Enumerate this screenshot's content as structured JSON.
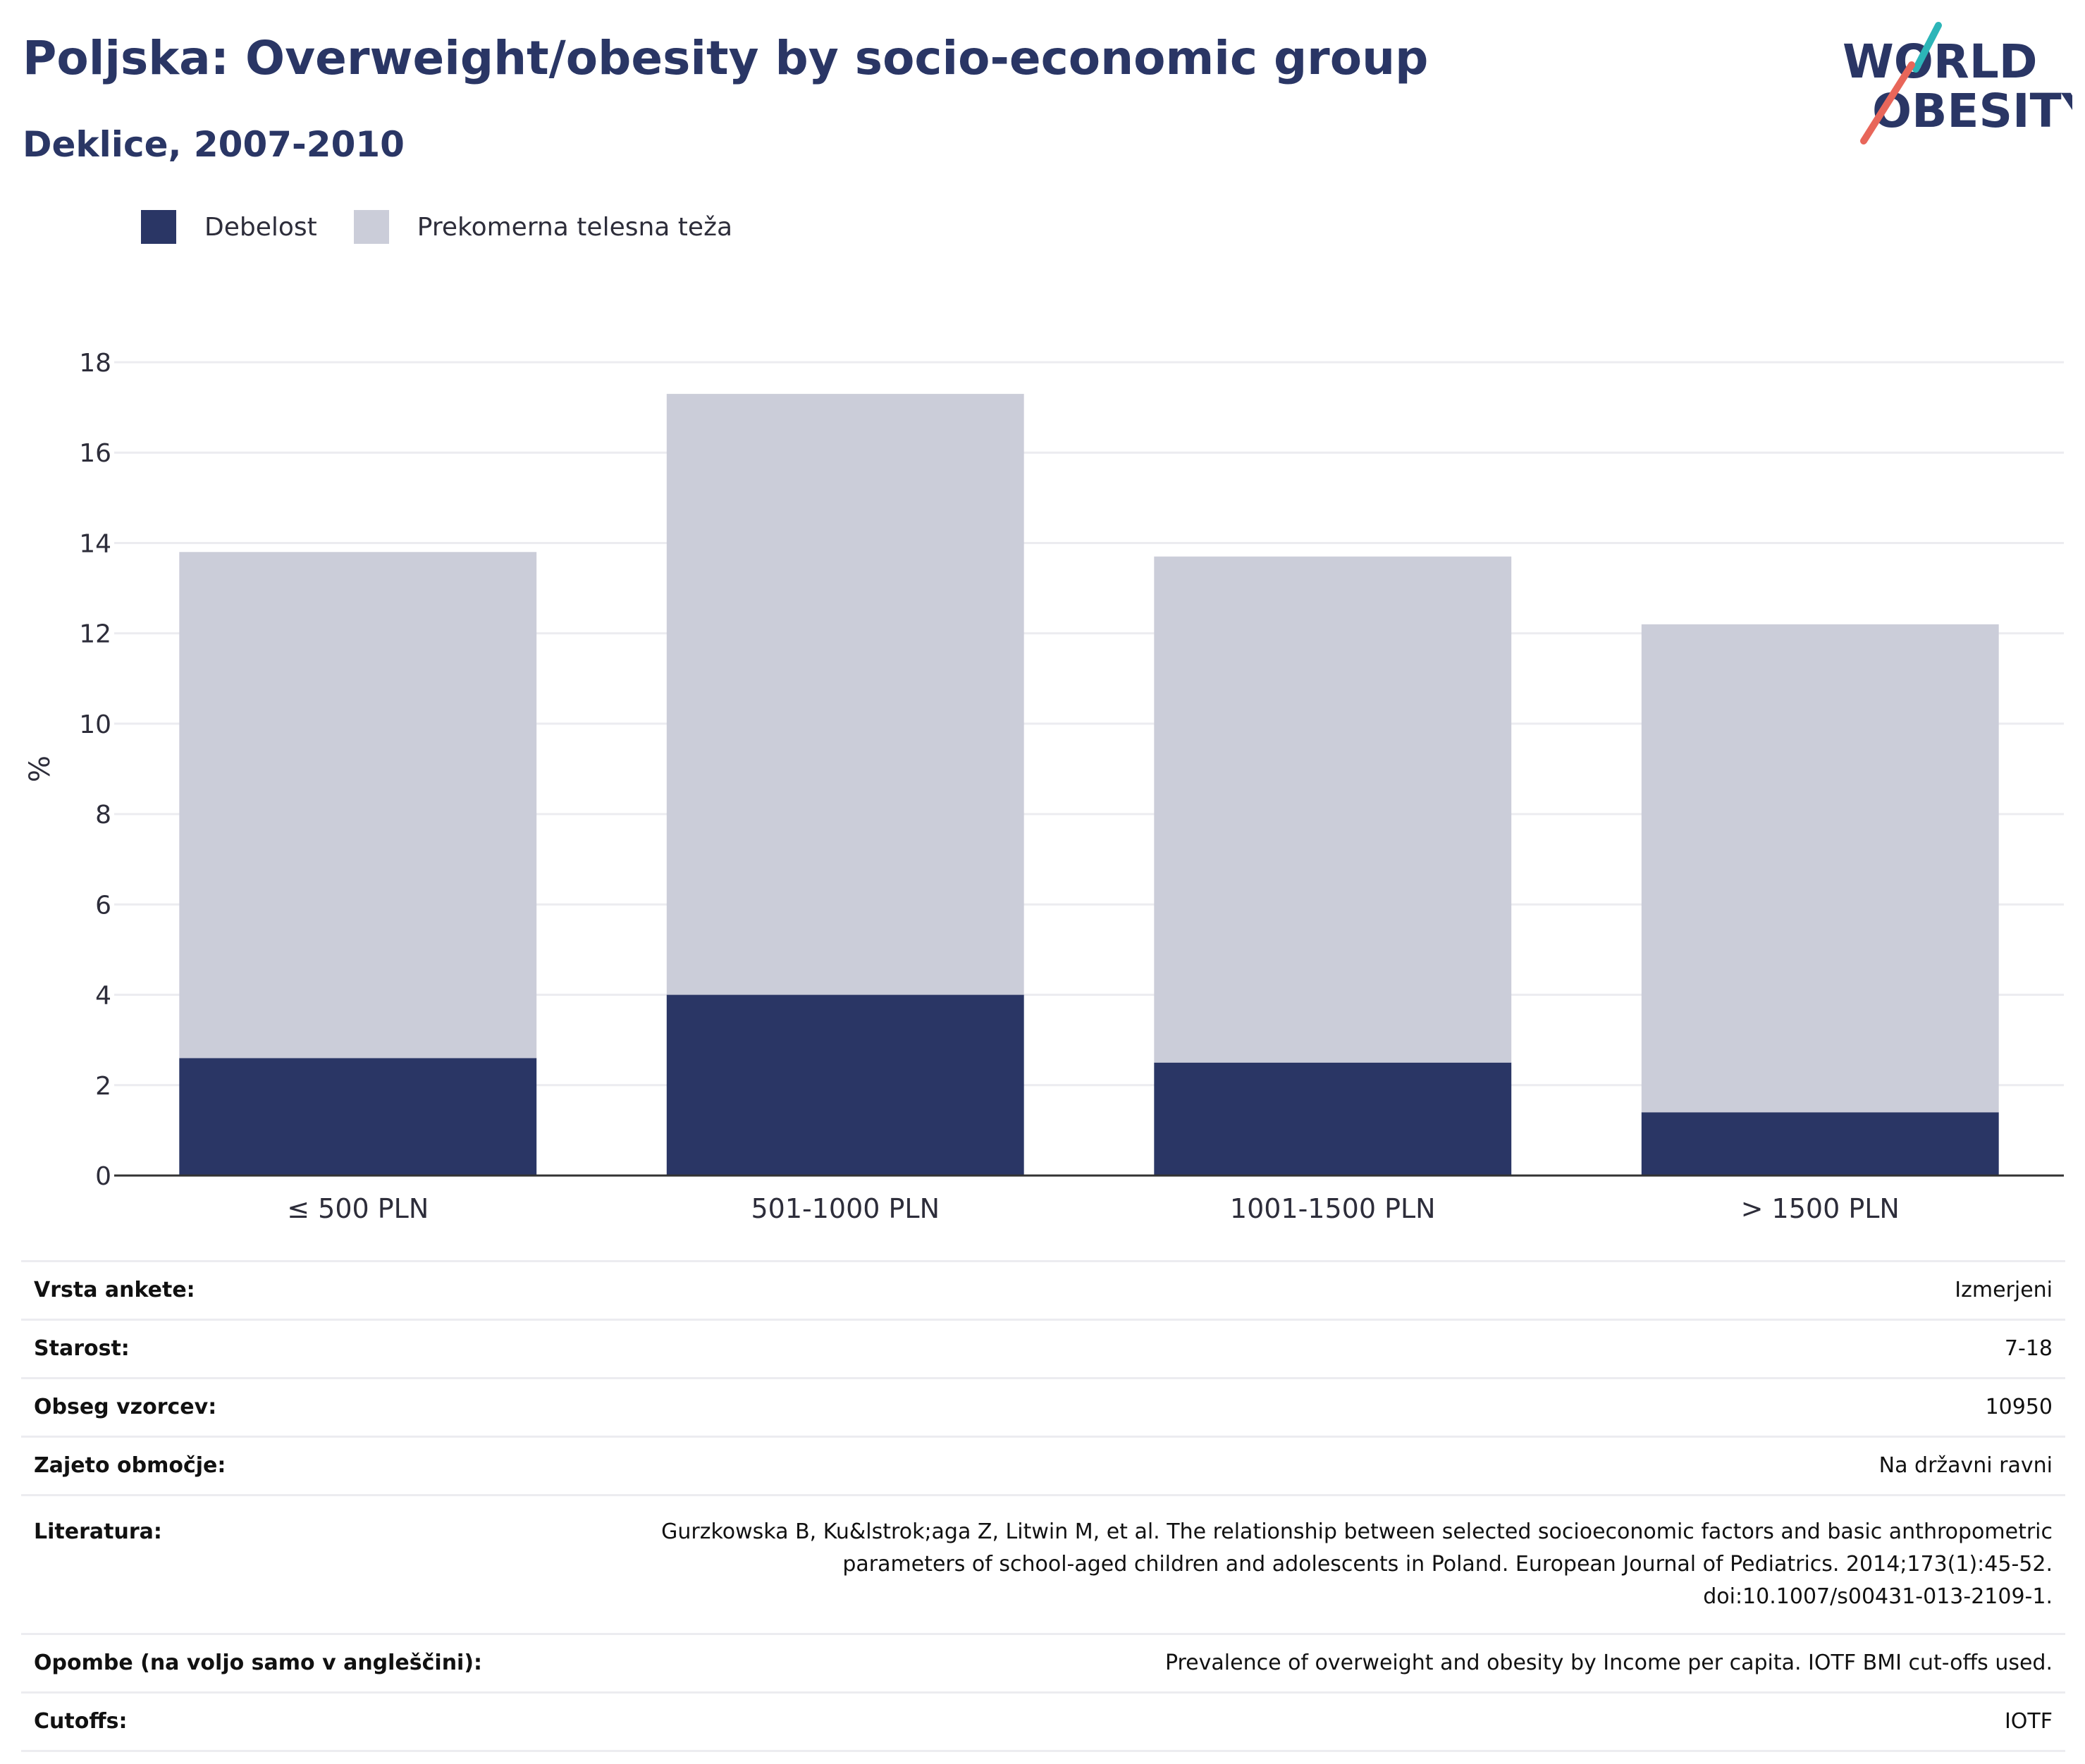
{
  "header": {
    "title": "Poljska: Overweight/obesity by socio-economic group",
    "subtitle": "Deklice, 2007-2010"
  },
  "logo": {
    "line1": "WORLD",
    "line2": "OBESITY",
    "colors": {
      "text": "#2a3665",
      "teal": "#2cb5b8",
      "coral": "#e8665a"
    }
  },
  "colors": {
    "obesity": "#2a3665",
    "overweight": "#cbcdd9",
    "grid": "#ececf0",
    "axis": "#333333"
  },
  "chart_data": {
    "type": "bar",
    "stacked": true,
    "categories": [
      "≤ 500 PLN",
      "501-1000 PLN",
      "1001-1500 PLN",
      "> 1500 PLN"
    ],
    "series": [
      {
        "name": "Debelost",
        "values": [
          2.6,
          4.0,
          2.5,
          1.4
        ]
      },
      {
        "name": "Prekomerna telesna teža",
        "values": [
          11.2,
          13.3,
          11.2,
          10.8
        ]
      }
    ],
    "totals": [
      13.8,
      17.3,
      13.7,
      12.2
    ],
    "ylabel": "%",
    "ylim": [
      0,
      18
    ],
    "yticks": [
      "0",
      "2",
      "4",
      "6",
      "8",
      "10",
      "12",
      "14",
      "16",
      "18"
    ],
    "grid": true,
    "legend_position": "top-left"
  },
  "info": [
    {
      "key": "Vrsta ankete:",
      "value": "Izmerjeni"
    },
    {
      "key": "Starost:",
      "value": "7-18"
    },
    {
      "key": "Obseg vzorcev:",
      "value": "10950"
    },
    {
      "key": "Zajeto območje:",
      "value": "Na državni ravni"
    },
    {
      "key": "Literatura:",
      "value": "Gurzkowska B, Ku&lstrok;aga Z, Litwin M, et al. The relationship between selected socioeconomic factors and basic anthropometric parameters of school-aged children and adolescents in Poland. European Journal of Pediatrics. 2014;173(1):45-52. doi:10.1007/s00431-013-2109-1."
    },
    {
      "key": "Opombe (na voljo samo v angleščini):",
      "value": "Prevalence of overweight and obesity by Income per capita. IOTF BMI cut-offs used."
    },
    {
      "key": "Cutoffs:",
      "value": "IOTF"
    }
  ]
}
